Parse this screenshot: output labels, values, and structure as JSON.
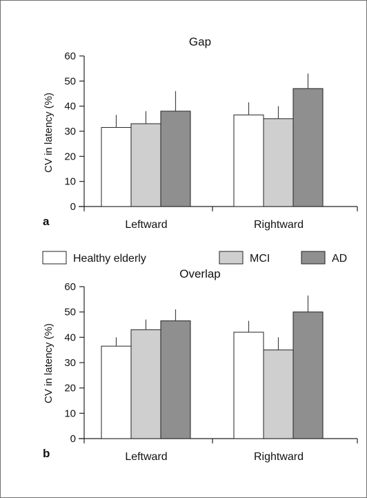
{
  "legend": {
    "entries": [
      {
        "label": "Healthy elderly",
        "color": "#ffffff"
      },
      {
        "label": "MCI",
        "color": "#cfcfcf"
      },
      {
        "label": "AD",
        "color": "#8f8f8f"
      }
    ]
  },
  "chart_data": [
    {
      "type": "bar",
      "panel_letter": "a",
      "title": "Gap",
      "ylabel": "CV in latency (%)",
      "ylim": [
        0,
        60
      ],
      "yticks": [
        0,
        10,
        20,
        30,
        40,
        50,
        60
      ],
      "categories": [
        "Leftward",
        "Rightward"
      ],
      "series": [
        {
          "name": "Healthy elderly",
          "color": "#ffffff",
          "values": [
            31.5,
            36.5
          ],
          "errors": [
            5,
            5
          ]
        },
        {
          "name": "MCI",
          "color": "#cfcfcf",
          "values": [
            33,
            35
          ],
          "errors": [
            5,
            5
          ]
        },
        {
          "name": "AD",
          "color": "#8f8f8f",
          "values": [
            38,
            47
          ],
          "errors": [
            8,
            6
          ]
        }
      ],
      "grid": false
    },
    {
      "type": "bar",
      "panel_letter": "b",
      "title": "Overlap",
      "ylabel": "CV in latency (%)",
      "ylim": [
        0,
        60
      ],
      "yticks": [
        0,
        10,
        20,
        30,
        40,
        50,
        60
      ],
      "categories": [
        "Leftward",
        "Rightward"
      ],
      "series": [
        {
          "name": "Healthy elderly",
          "color": "#ffffff",
          "values": [
            36.5,
            42
          ],
          "errors": [
            3.5,
            4.5
          ]
        },
        {
          "name": "MCI",
          "color": "#cfcfcf",
          "values": [
            43,
            35
          ],
          "errors": [
            4,
            5
          ]
        },
        {
          "name": "AD",
          "color": "#8f8f8f",
          "values": [
            46.5,
            50
          ],
          "errors": [
            4.5,
            6.5
          ]
        }
      ],
      "grid": false
    }
  ]
}
